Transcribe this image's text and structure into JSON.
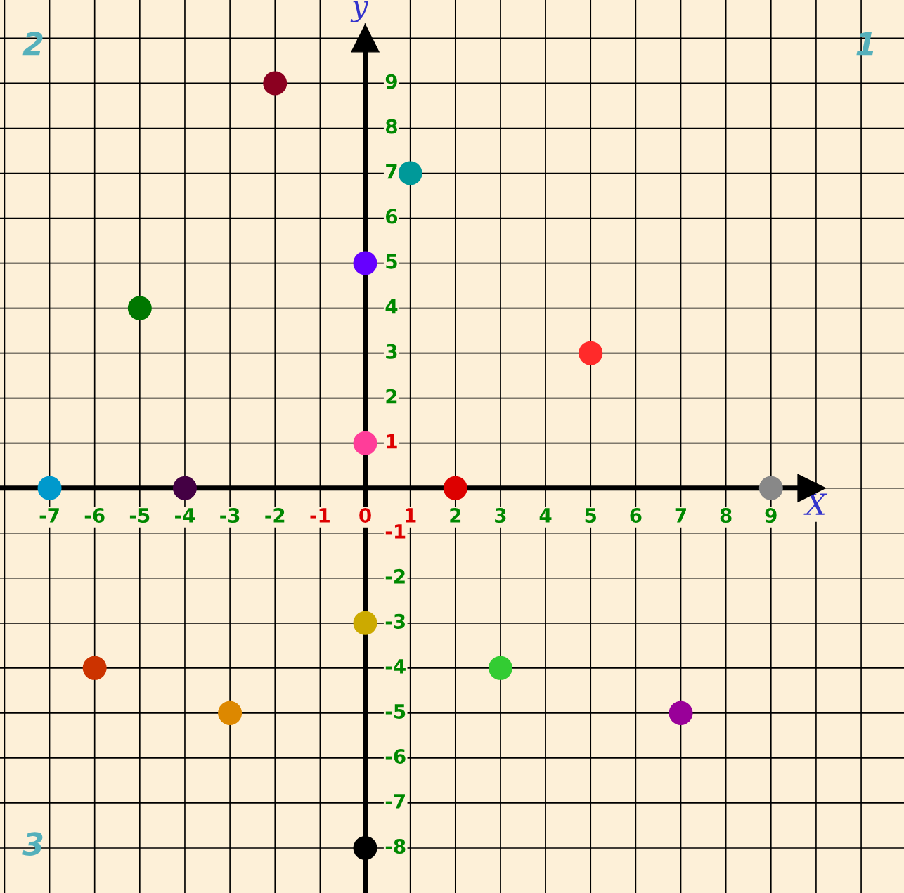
{
  "chart_data": {
    "type": "scatter",
    "xlabel": "X",
    "ylabel": "y",
    "x": [
      -2,
      1,
      0,
      -5,
      5,
      0,
      -7,
      -4,
      2,
      9,
      0,
      -6,
      3,
      -3,
      7,
      0
    ],
    "series": [
      {
        "values": [
          9,
          7,
          5,
          4,
          3,
          1,
          0,
          0,
          0,
          0,
          -3,
          -4,
          -4,
          -5,
          -5,
          -8
        ],
        "colors": [
          "#8b0020",
          "#009999",
          "#6600ff",
          "#007700",
          "#ff2a2a",
          "#ff3d99",
          "#0099cc",
          "#440044",
          "#dd0000",
          "#888888",
          "#ccaa00",
          "#cc3300",
          "#33cc33",
          "#dd8800",
          "#990099",
          "#000000"
        ]
      }
    ],
    "xlim": [
      -8.1,
      11.95
    ],
    "ylim": [
      -9.0,
      10.85
    ],
    "xticks": [
      {
        "value": -8,
        "label": null
      },
      -7,
      -6,
      -5,
      -4,
      -3,
      -2,
      -1,
      0,
      1,
      2,
      3,
      4,
      5,
      6,
      7,
      8,
      9,
      {
        "value": 10,
        "label": null
      },
      {
        "value": 11,
        "label": null
      }
    ],
    "yticks": [
      -8,
      -7,
      -6,
      -5,
      -4,
      -3,
      -2,
      -1,
      {
        "value": 0,
        "label": null
      },
      1,
      2,
      3,
      4,
      5,
      6,
      7,
      8,
      9,
      {
        "value": 10,
        "label": null
      }
    ],
    "grid": true,
    "marker": "circle",
    "annotations": [
      "1",
      "2",
      "3"
    ]
  }
}
